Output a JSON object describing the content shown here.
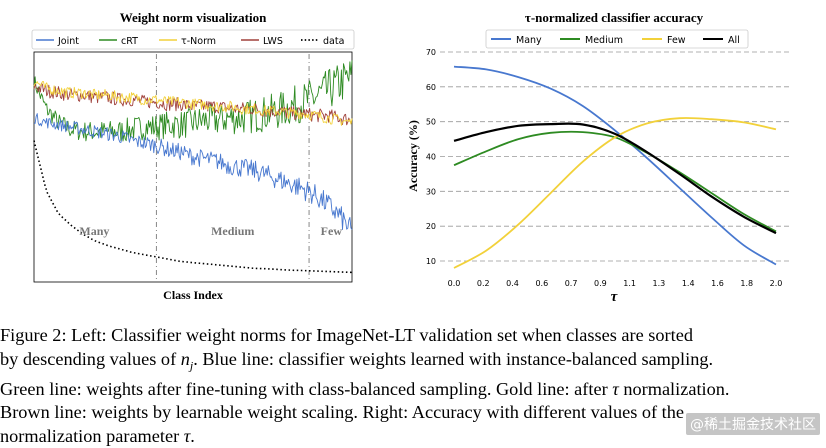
{
  "chart_data": [
    {
      "type": "line",
      "title": "Weight norm visualization",
      "xlabel": "Class Index",
      "ylabel": "",
      "grid": false,
      "legend_position": "top",
      "regions": [
        "Many",
        "Medium",
        "Few"
      ],
      "series": [
        {
          "name": "Joint",
          "color": "#4878cf",
          "style": "solid",
          "values": [
            0.72,
            0.7,
            0.69,
            0.68,
            0.67,
            0.66,
            0.65,
            0.64,
            0.62,
            0.61,
            0.6,
            0.58,
            0.57,
            0.55,
            0.54,
            0.53,
            0.51,
            0.5,
            0.49,
            0.47,
            0.45,
            0.43,
            0.41,
            0.38,
            0.34,
            0.29,
            0.22
          ]
        },
        {
          "name": "cRT",
          "color": "#2e8b22",
          "style": "solid",
          "values": [
            0.88,
            0.76,
            0.7,
            0.67,
            0.66,
            0.66,
            0.66,
            0.66,
            0.67,
            0.68,
            0.68,
            0.69,
            0.69,
            0.7,
            0.71,
            0.71,
            0.72,
            0.72,
            0.73,
            0.74,
            0.75,
            0.77,
            0.79,
            0.81,
            0.84,
            0.87,
            0.9
          ]
        },
        {
          "name": "τ-Norm",
          "color": "#f2d13a",
          "style": "solid",
          "values": [
            0.88,
            0.85,
            0.84,
            0.83,
            0.83,
            0.82,
            0.82,
            0.81,
            0.81,
            0.8,
            0.8,
            0.79,
            0.79,
            0.78,
            0.78,
            0.77,
            0.77,
            0.76,
            0.76,
            0.75,
            0.75,
            0.74,
            0.74,
            0.73,
            0.72,
            0.71,
            0.7
          ]
        },
        {
          "name": "LWS",
          "color": "#a0413c",
          "style": "solid",
          "values": [
            0.86,
            0.84,
            0.83,
            0.82,
            0.82,
            0.81,
            0.81,
            0.8,
            0.8,
            0.79,
            0.79,
            0.78,
            0.78,
            0.77,
            0.77,
            0.77,
            0.76,
            0.76,
            0.76,
            0.75,
            0.75,
            0.74,
            0.74,
            0.73,
            0.73,
            0.72,
            0.71
          ]
        },
        {
          "name": "data",
          "color": "#000000",
          "style": "dotted",
          "values": [
            0.62,
            0.4,
            0.3,
            0.25,
            0.21,
            0.18,
            0.16,
            0.145,
            0.13,
            0.12,
            0.11,
            0.1,
            0.09,
            0.085,
            0.08,
            0.075,
            0.07,
            0.065,
            0.06,
            0.058,
            0.055,
            0.052,
            0.05,
            0.048,
            0.046,
            0.044,
            0.042
          ]
        }
      ]
    },
    {
      "type": "line",
      "title": "τ-normalized classifier accuracy",
      "xlabel": "τ",
      "ylabel": "Accuracy (%)",
      "xlim": [
        0.0,
        2.0
      ],
      "ylim": [
        10,
        70
      ],
      "x_ticks": [
        "0.0",
        "0.2",
        "0.4",
        "0.6",
        "0.7",
        "0.9",
        "1.1",
        "1.3",
        "1.4",
        "1.6",
        "1.8",
        "2.0"
      ],
      "y_ticks": [
        "10",
        "20",
        "30",
        "40",
        "50",
        "60",
        "70"
      ],
      "grid": true,
      "legend_position": "top",
      "x": [
        0.0,
        0.2,
        0.4,
        0.6,
        0.8,
        1.0,
        1.2,
        1.4,
        1.6,
        1.8,
        2.0
      ],
      "series": [
        {
          "name": "Many",
          "color": "#4878cf",
          "values": [
            65.8,
            65.0,
            62.8,
            59.5,
            54.5,
            47.5,
            39.5,
            31.0,
            22.5,
            14.5,
            9.0
          ]
        },
        {
          "name": "Medium",
          "color": "#2e8b22",
          "values": [
            37.5,
            41.5,
            45.0,
            46.8,
            47.0,
            45.5,
            41.0,
            35.5,
            29.5,
            23.5,
            18.5
          ]
        },
        {
          "name": "Few",
          "color": "#f2d13a",
          "values": [
            8.0,
            13.0,
            20.5,
            29.5,
            38.5,
            45.5,
            49.5,
            51.0,
            50.7,
            49.8,
            47.8
          ]
        },
        {
          "name": "All",
          "color": "#000000",
          "values": [
            44.5,
            47.0,
            48.8,
            49.3,
            49.2,
            46.5,
            41.2,
            35.0,
            28.5,
            22.7,
            18.0
          ]
        }
      ]
    }
  ],
  "caption": {
    "line1": "Figure 2: Left: Classifier weight norms for ImageNet-LT validation set when classes are sorted",
    "line2_a": "by descending values of ",
    "line2_var": "n",
    "line2_sub": "j",
    "line2_b": ". Blue line: classifier weights learned with instance-balanced sampling.",
    "line3_a": "Green line: weights after fine-tuning with class-balanced sampling. Gold line: after ",
    "line3_var": "τ",
    "line3_b": " normalization.",
    "line4": "Brown line: weights by learnable weight scaling. Right: Accuracy with different values of the",
    "line5_a": "normalization parameter ",
    "line5_var": "τ",
    "line5_b": "."
  },
  "watermark": "@稀土掘金技术社区"
}
